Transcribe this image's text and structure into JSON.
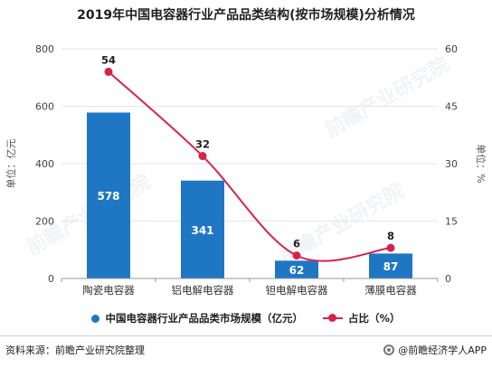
{
  "title": "2019年中国电容器行业产品品类结构(按市场规模)分析情况",
  "colors": {
    "bar": "#1f77c4",
    "line": "#d6234a",
    "grid": "#e6e6e6",
    "axis": "#999999"
  },
  "chart_data": {
    "type": "bar+line",
    "title": "2019年中国电容器行业产品品类结构(按市场规模)分析情况",
    "categories": [
      "陶瓷电容器",
      "铝电解电容器",
      "钽电解电容器",
      "薄膜电容器"
    ],
    "series": [
      {
        "name": "中国电容器行业产品品类市场规模（亿元）",
        "type": "bar",
        "axis": "left",
        "values": [
          578,
          341,
          62,
          87
        ]
      },
      {
        "name": "占比（%）",
        "type": "line",
        "axis": "right",
        "values": [
          54,
          32,
          6,
          8
        ]
      }
    ],
    "ylabel_left": "单位：亿元",
    "ylabel_right": "单位：%",
    "ylim_left": [
      0,
      800
    ],
    "ylim_right": [
      0,
      60
    ],
    "yticks_left": [
      0,
      200,
      400,
      600,
      800
    ],
    "yticks_right": [
      0,
      15,
      30,
      45,
      60
    ],
    "grid": true,
    "legend": "bottom"
  },
  "footer": {
    "source": "资料来源：前瞻产业研究院整理",
    "brand": "@前瞻经济学人APP"
  }
}
